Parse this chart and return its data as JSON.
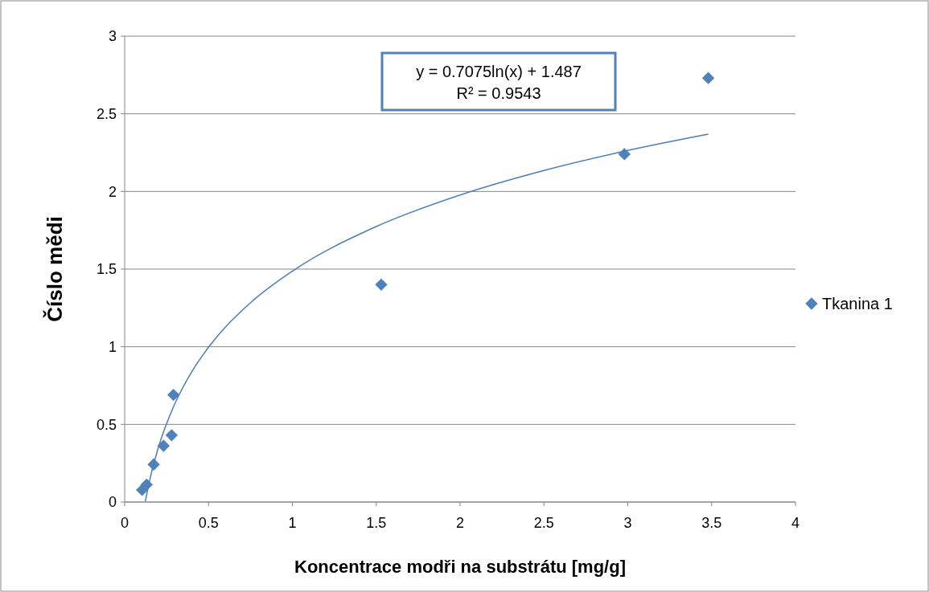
{
  "chart_data": {
    "type": "scatter",
    "xlabel": "Koncentrace modři na substrátu [mg/g]",
    "ylabel": "Číslo mědi",
    "xlim": [
      0,
      4
    ],
    "xticks": [
      0,
      0.5,
      1,
      1.5,
      2,
      2.5,
      3,
      3.5,
      4
    ],
    "ylim": [
      0,
      3
    ],
    "yticks": [
      0,
      0.5,
      1,
      1.5,
      2,
      2.5,
      3
    ],
    "grid": "y",
    "legend": "right",
    "marker": "diamond",
    "annotations": [
      "y = 0.7075ln(x) + 1.487",
      "R² = 0.9543"
    ],
    "series": [
      {
        "name": "Tkanina 1",
        "color": "#4f81bd",
        "x": [
          0.104,
          0.131,
          0.173,
          0.232,
          0.28,
          0.291,
          1.53,
          2.98,
          3.48
        ],
        "values": [
          0.078,
          0.112,
          0.242,
          0.362,
          0.43,
          0.69,
          1.4,
          2.24,
          2.73
        ]
      },
      {
        "type": "line",
        "color": "#4a7ebb",
        "marker": "none",
        "x": [
          0.123,
          0.15,
          0.2,
          0.3,
          0.4,
          0.5,
          0.75,
          1,
          1.5,
          2,
          2.5,
          3,
          3.48
        ],
        "values": [
          0.004,
          0.145,
          0.348,
          0.635,
          0.839,
          0.997,
          1.283,
          1.487,
          1.774,
          1.977,
          2.135,
          2.264,
          2.369
        ]
      }
    ]
  }
}
